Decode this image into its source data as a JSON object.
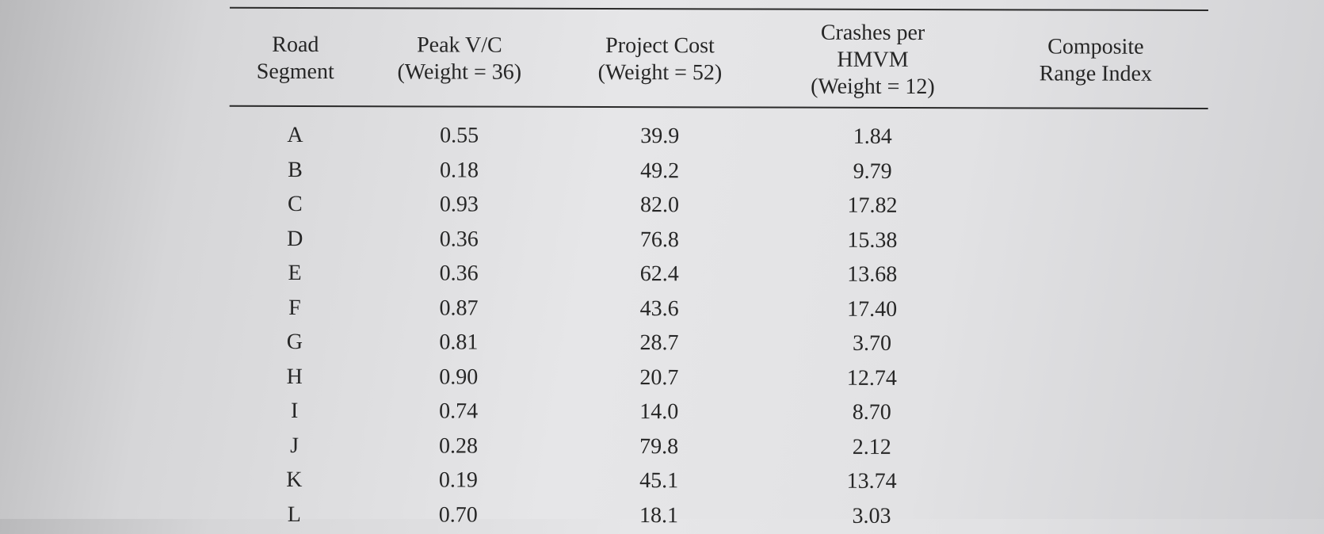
{
  "table": {
    "headers": [
      [
        "Road",
        "Segment"
      ],
      [
        "Peak V/C",
        "(Weight = 36)"
      ],
      [
        "Project Cost",
        "(Weight = 52)"
      ],
      [
        "Crashes per",
        "HMVM",
        "(Weight = 12)"
      ],
      [
        "Composite",
        "Range Index"
      ]
    ],
    "rows": [
      [
        "A",
        "0.55",
        "39.9",
        "1.84",
        ""
      ],
      [
        "B",
        "0.18",
        "49.2",
        "9.79",
        ""
      ],
      [
        "C",
        "0.93",
        "82.0",
        "17.82",
        ""
      ],
      [
        "D",
        "0.36",
        "76.8",
        "15.38",
        ""
      ],
      [
        "E",
        "0.36",
        "62.4",
        "13.68",
        ""
      ],
      [
        "F",
        "0.87",
        "43.6",
        "17.40",
        ""
      ],
      [
        "G",
        "0.81",
        "28.7",
        "3.70",
        ""
      ],
      [
        "H",
        "0.90",
        "20.7",
        "12.74",
        ""
      ],
      [
        "I",
        "0.74",
        "14.0",
        "8.70",
        ""
      ],
      [
        "J",
        "0.28",
        "79.8",
        "2.12",
        ""
      ],
      [
        "K",
        "0.19",
        "45.1",
        "13.74",
        ""
      ],
      [
        "L",
        "0.70",
        "18.1",
        "3.03",
        ""
      ]
    ]
  }
}
